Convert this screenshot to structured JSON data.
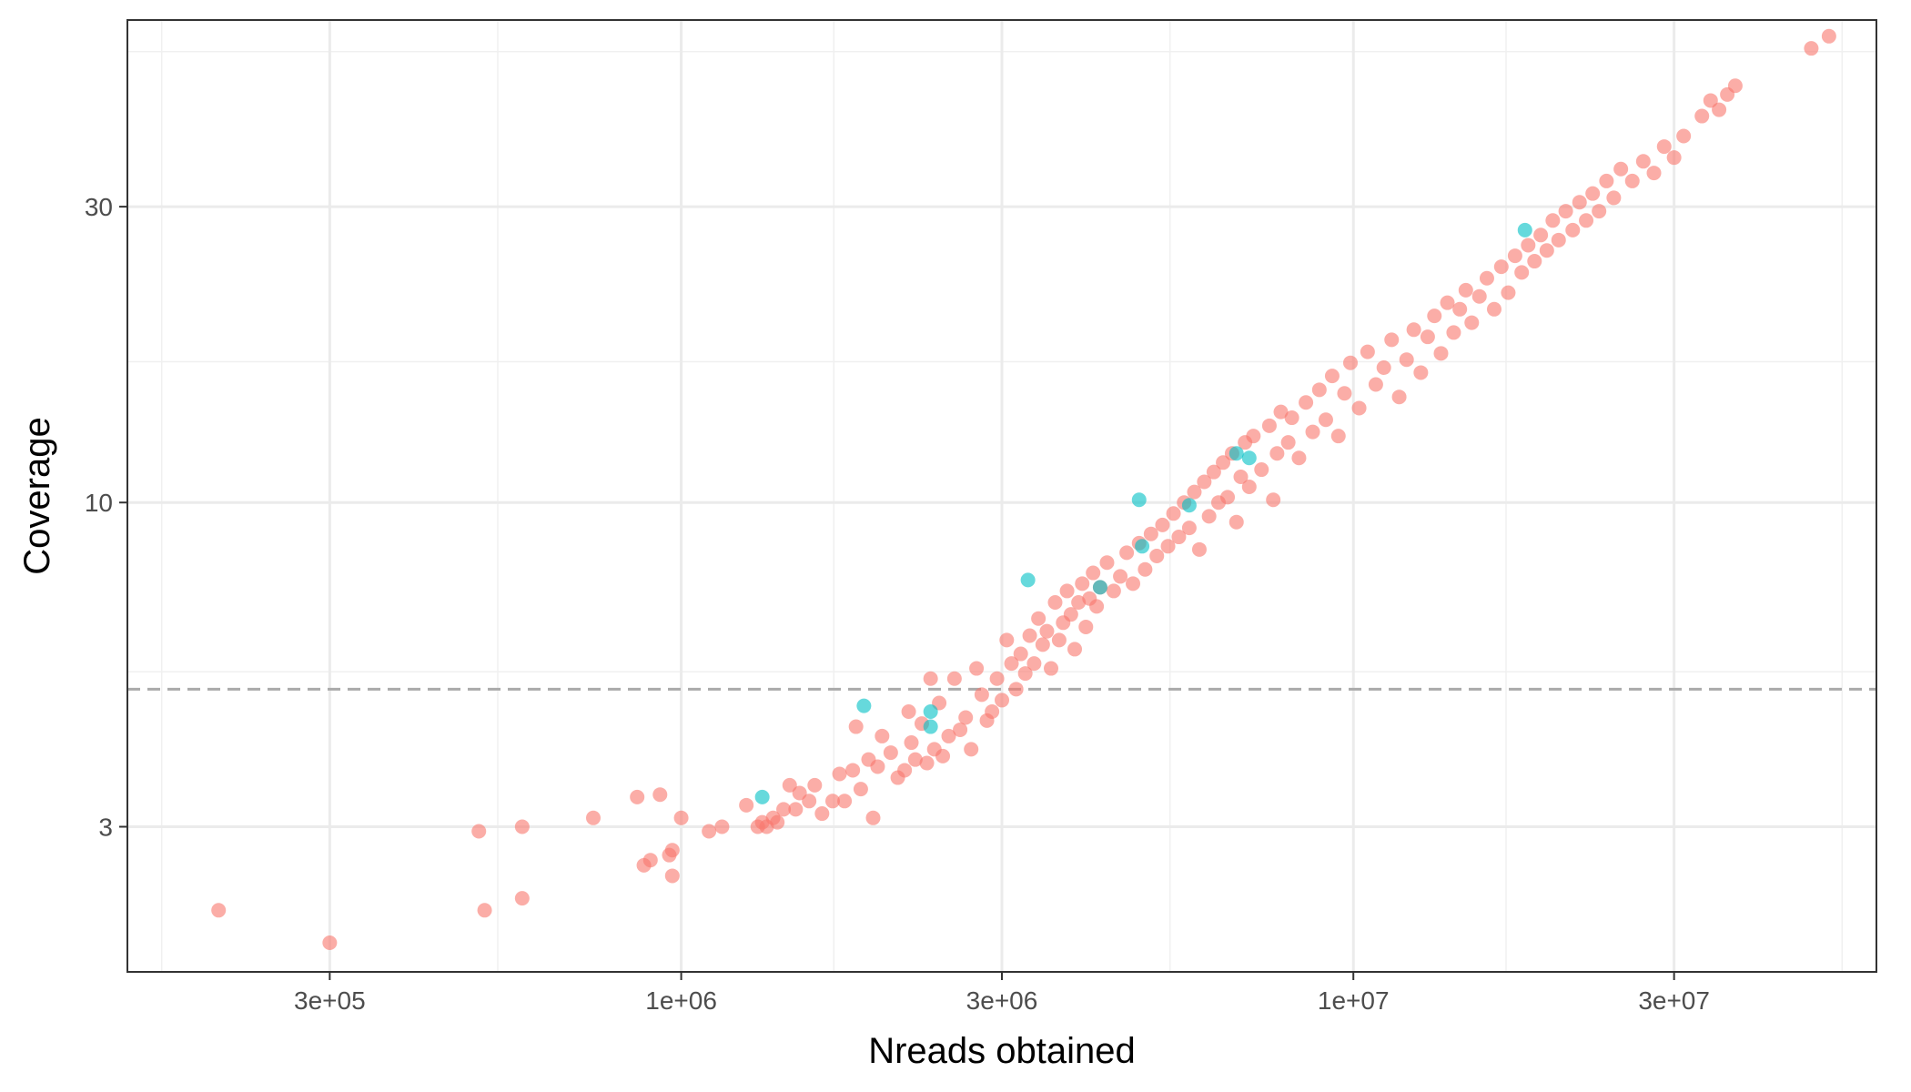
{
  "chart_data": {
    "type": "scatter",
    "title": "",
    "xlabel": "Nreads obtained",
    "ylabel": "Coverage",
    "x_scale": "log10",
    "y_scale": "log10",
    "xlim": [
      150000,
      60000000
    ],
    "ylim": [
      1.75,
      60
    ],
    "x_ticks": [
      {
        "value": 300000,
        "label": "3e+05"
      },
      {
        "value": 1000000,
        "label": "1e+06"
      },
      {
        "value": 3000000,
        "label": "3e+06"
      },
      {
        "value": 10000000,
        "label": "1e+07"
      },
      {
        "value": 30000000,
        "label": "3e+07"
      }
    ],
    "y_ticks": [
      {
        "value": 3,
        "label": "3"
      },
      {
        "value": 10,
        "label": "10"
      },
      {
        "value": 30,
        "label": "30"
      }
    ],
    "reference_line": {
      "orientation": "horizontal",
      "y": 5,
      "style": "dashed",
      "color": "#aaaaaa"
    },
    "grid": true,
    "legend": "none",
    "series_colors": {
      "red": "#F8766D",
      "teal": "#00BFC4"
    },
    "series": [
      {
        "color": "#F8766D",
        "points": [
          [
            205000,
            2.2
          ],
          [
            300000,
            1.95
          ],
          [
            500000,
            2.95
          ],
          [
            510000,
            2.2
          ],
          [
            580000,
            3.0
          ],
          [
            580000,
            2.3
          ],
          [
            740000,
            3.1
          ],
          [
            860000,
            3.35
          ],
          [
            880000,
            2.6
          ],
          [
            900000,
            2.65
          ],
          [
            930000,
            3.38
          ],
          [
            960000,
            2.7
          ],
          [
            970000,
            2.75
          ],
          [
            970000,
            2.5
          ],
          [
            1000000,
            3.1
          ],
          [
            1100000,
            2.95
          ],
          [
            1150000,
            3.0
          ],
          [
            1250000,
            3.25
          ],
          [
            1300000,
            3.0
          ],
          [
            1320000,
            3.05
          ],
          [
            1340000,
            3.0
          ],
          [
            1370000,
            3.1
          ],
          [
            1390000,
            3.05
          ],
          [
            1420000,
            3.2
          ],
          [
            1450000,
            3.5
          ],
          [
            1480000,
            3.2
          ],
          [
            1500000,
            3.4
          ],
          [
            1550000,
            3.3
          ],
          [
            1580000,
            3.5
          ],
          [
            1620000,
            3.15
          ],
          [
            1680000,
            3.3
          ],
          [
            1720000,
            3.65
          ],
          [
            1750000,
            3.3
          ],
          [
            1800000,
            3.7
          ],
          [
            1820000,
            4.35
          ],
          [
            1850000,
            3.45
          ],
          [
            1900000,
            3.85
          ],
          [
            1930000,
            3.1
          ],
          [
            1960000,
            3.75
          ],
          [
            1990000,
            4.2
          ],
          [
            2050000,
            3.95
          ],
          [
            2100000,
            3.6
          ],
          [
            2150000,
            3.7
          ],
          [
            2180000,
            4.6
          ],
          [
            2200000,
            4.1
          ],
          [
            2230000,
            3.85
          ],
          [
            2280000,
            4.4
          ],
          [
            2320000,
            3.8
          ],
          [
            2350000,
            5.2
          ],
          [
            2380000,
            4.0
          ],
          [
            2420000,
            4.75
          ],
          [
            2450000,
            3.9
          ],
          [
            2500000,
            4.2
          ],
          [
            2550000,
            5.2
          ],
          [
            2600000,
            4.3
          ],
          [
            2650000,
            4.5
          ],
          [
            2700000,
            4.0
          ],
          [
            2750000,
            5.4
          ],
          [
            2800000,
            4.9
          ],
          [
            2850000,
            4.45
          ],
          [
            2900000,
            4.6
          ],
          [
            2950000,
            5.2
          ],
          [
            3000000,
            4.8
          ],
          [
            3050000,
            6.0
          ],
          [
            3100000,
            5.5
          ],
          [
            3150000,
            5.0
          ],
          [
            3200000,
            5.7
          ],
          [
            3250000,
            5.3
          ],
          [
            3300000,
            6.1
          ],
          [
            3350000,
            5.5
          ],
          [
            3400000,
            6.5
          ],
          [
            3450000,
            5.9
          ],
          [
            3500000,
            6.2
          ],
          [
            3550000,
            5.4
          ],
          [
            3600000,
            6.9
          ],
          [
            3650000,
            6.0
          ],
          [
            3700000,
            6.4
          ],
          [
            3750000,
            7.2
          ],
          [
            3800000,
            6.6
          ],
          [
            3850000,
            5.8
          ],
          [
            3900000,
            6.9
          ],
          [
            3950000,
            7.4
          ],
          [
            4000000,
            6.3
          ],
          [
            4050000,
            7.0
          ],
          [
            4100000,
            7.7
          ],
          [
            4150000,
            6.8
          ],
          [
            4200000,
            7.3
          ],
          [
            4300000,
            8.0
          ],
          [
            4400000,
            7.2
          ],
          [
            4500000,
            7.6
          ],
          [
            4600000,
            8.3
          ],
          [
            4700000,
            7.4
          ],
          [
            4800000,
            8.6
          ],
          [
            4900000,
            7.8
          ],
          [
            5000000,
            8.9
          ],
          [
            5100000,
            8.2
          ],
          [
            5200000,
            9.2
          ],
          [
            5300000,
            8.5
          ],
          [
            5400000,
            9.6
          ],
          [
            5500000,
            8.8
          ],
          [
            5600000,
            10.0
          ],
          [
            5700000,
            9.1
          ],
          [
            5800000,
            10.4
          ],
          [
            5900000,
            8.4
          ],
          [
            6000000,
            10.8
          ],
          [
            6100000,
            9.5
          ],
          [
            6200000,
            11.2
          ],
          [
            6300000,
            10.0
          ],
          [
            6400000,
            11.6
          ],
          [
            6500000,
            10.2
          ],
          [
            6600000,
            12.0
          ],
          [
            6700000,
            9.3
          ],
          [
            6800000,
            11.0
          ],
          [
            6900000,
            12.5
          ],
          [
            7000000,
            10.6
          ],
          [
            7100000,
            12.8
          ],
          [
            7300000,
            11.3
          ],
          [
            7500000,
            13.3
          ],
          [
            7600000,
            10.1
          ],
          [
            7700000,
            12.0
          ],
          [
            7800000,
            14.0
          ],
          [
            8000000,
            12.5
          ],
          [
            8100000,
            13.7
          ],
          [
            8300000,
            11.8
          ],
          [
            8500000,
            14.5
          ],
          [
            8700000,
            13.0
          ],
          [
            8900000,
            15.2
          ],
          [
            9100000,
            13.6
          ],
          [
            9300000,
            16.0
          ],
          [
            9500000,
            12.8
          ],
          [
            9700000,
            15.0
          ],
          [
            9900000,
            16.8
          ],
          [
            10200000,
            14.2
          ],
          [
            10500000,
            17.5
          ],
          [
            10800000,
            15.5
          ],
          [
            11100000,
            16.5
          ],
          [
            11400000,
            18.3
          ],
          [
            11700000,
            14.8
          ],
          [
            12000000,
            17.0
          ],
          [
            12300000,
            19.0
          ],
          [
            12600000,
            16.2
          ],
          [
            12900000,
            18.5
          ],
          [
            13200000,
            20.0
          ],
          [
            13500000,
            17.4
          ],
          [
            13800000,
            21.0
          ],
          [
            14100000,
            18.8
          ],
          [
            14400000,
            20.5
          ],
          [
            14700000,
            22.0
          ],
          [
            15000000,
            19.5
          ],
          [
            15400000,
            21.5
          ],
          [
            15800000,
            23.0
          ],
          [
            16200000,
            20.5
          ],
          [
            16600000,
            24.0
          ],
          [
            17000000,
            21.8
          ],
          [
            17400000,
            25.0
          ],
          [
            17800000,
            23.5
          ],
          [
            18200000,
            26.0
          ],
          [
            18600000,
            24.5
          ],
          [
            19000000,
            27.0
          ],
          [
            19400000,
            25.5
          ],
          [
            19800000,
            28.5
          ],
          [
            20200000,
            26.5
          ],
          [
            20700000,
            29.5
          ],
          [
            21200000,
            27.5
          ],
          [
            21700000,
            30.5
          ],
          [
            22200000,
            28.5
          ],
          [
            22700000,
            31.5
          ],
          [
            23200000,
            29.5
          ],
          [
            23800000,
            33.0
          ],
          [
            24400000,
            31.0
          ],
          [
            25000000,
            34.5
          ],
          [
            26000000,
            33.0
          ],
          [
            27000000,
            35.5
          ],
          [
            28000000,
            34.0
          ],
          [
            29000000,
            37.5
          ],
          [
            30000000,
            36.0
          ],
          [
            31000000,
            39.0
          ],
          [
            33000000,
            42.0
          ],
          [
            34000000,
            44.5
          ],
          [
            35000000,
            43.0
          ],
          [
            36000000,
            45.5
          ],
          [
            37000000,
            47.0
          ],
          [
            48000000,
            54.0
          ],
          [
            51000000,
            56.5
          ]
        ]
      },
      {
        "color": "#00BFC4",
        "points": [
          [
            1320000,
            3.35
          ],
          [
            1870000,
            4.7
          ],
          [
            2350000,
            4.6
          ],
          [
            2350000,
            4.35
          ],
          [
            3280000,
            7.5
          ],
          [
            4200000,
            7.3
          ],
          [
            4800000,
            10.1
          ],
          [
            5700000,
            9.9
          ],
          [
            6700000,
            12.0
          ],
          [
            7000000,
            11.8
          ],
          [
            4850000,
            8.5
          ],
          [
            18000000,
            27.5
          ]
        ]
      }
    ]
  }
}
